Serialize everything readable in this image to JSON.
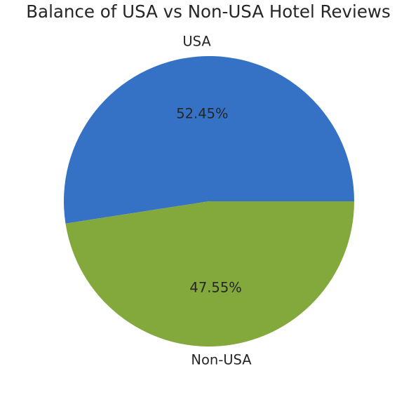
{
  "chart_data": {
    "type": "pie",
    "title": "Balance of USA vs Non-USA Hotel Reviews",
    "slices": [
      {
        "label": "USA",
        "value": 52.45,
        "pct_label": "52.45%",
        "color": "#3572c6"
      },
      {
        "label": "Non-USA",
        "value": 47.55,
        "pct_label": "47.55%",
        "color": "#83a83b"
      }
    ],
    "start_angle_deg": 0,
    "direction": "counterclockwise",
    "legend": "none"
  }
}
